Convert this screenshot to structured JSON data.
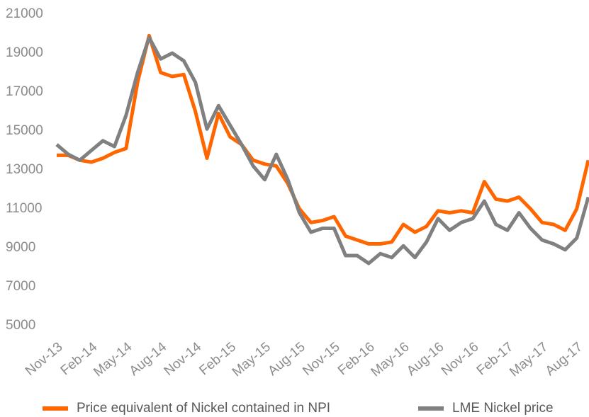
{
  "chart_data": {
    "type": "line",
    "categories": [
      "Nov-13",
      null,
      null,
      "Feb-14",
      null,
      null,
      "May-14",
      null,
      null,
      "Aug-14",
      null,
      null,
      "Nov-14",
      null,
      null,
      "Feb-15",
      null,
      null,
      "May-15",
      null,
      null,
      "Aug-15",
      null,
      null,
      "Nov-15",
      null,
      null,
      "Feb-16",
      null,
      null,
      "May-16",
      null,
      null,
      "Aug-16",
      null,
      null,
      "Nov-16",
      null,
      null,
      "Feb-17",
      null,
      null,
      "May-17",
      null,
      null,
      "Aug-17",
      null
    ],
    "series": [
      {
        "name": "Price equivalent of Nickel contained in NPI",
        "color": "#ff6600",
        "values": [
          13750,
          13750,
          13500,
          13400,
          13600,
          13900,
          14100,
          17500,
          19900,
          18000,
          17800,
          17900,
          16000,
          13600,
          15900,
          14700,
          14300,
          13500,
          13300,
          13200,
          12300,
          11000,
          10300,
          10400,
          10600,
          9600,
          9400,
          9200,
          9200,
          9300,
          10200,
          9800,
          10100,
          10900,
          10800,
          10900,
          10800,
          12400,
          11500,
          11400,
          11600,
          11000,
          10300,
          10200,
          9900,
          11000,
          13500
        ]
      },
      {
        "name": "LME Nickel price",
        "color": "#808080",
        "values": [
          14300,
          13800,
          13500,
          14000,
          14500,
          14200,
          15800,
          18000,
          19800,
          18700,
          19000,
          18600,
          17500,
          15100,
          16300,
          15300,
          14300,
          13200,
          12500,
          13800,
          12500,
          10800,
          9800,
          10000,
          10000,
          8600,
          8600,
          8200,
          8700,
          8500,
          9100,
          8500,
          9300,
          10500,
          9900,
          10300,
          10500,
          11400,
          10200,
          9900,
          10800,
          10000,
          9400,
          9200,
          8900,
          9500,
          11600
        ]
      }
    ],
    "ylim": [
      5000,
      21000
    ],
    "yticks": [
      5000,
      7000,
      9000,
      11000,
      13000,
      15000,
      17000,
      19000,
      21000
    ],
    "grid": false,
    "legend": "bottom"
  }
}
